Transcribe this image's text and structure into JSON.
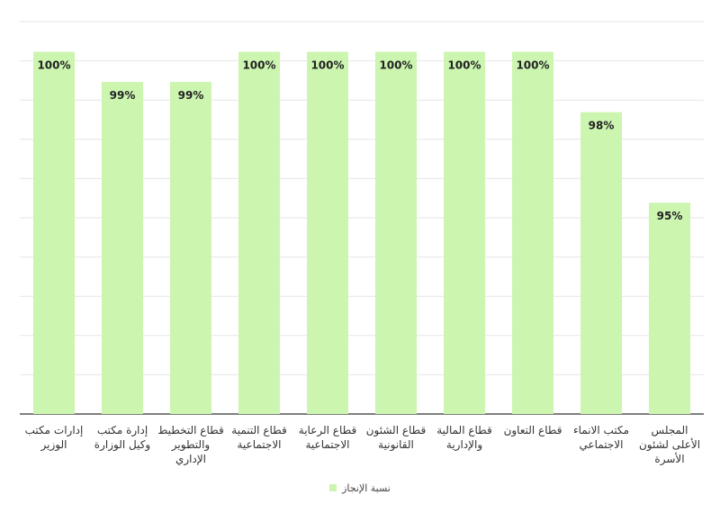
{
  "chart_data": {
    "type": "bar",
    "categories": [
      "إدارات مكتب الوزير",
      "إدارة مكتب وكيل الوزارة",
      "قطاع التخطيط والتطوير الإداري",
      "قطاع التنمية الاجتماعية",
      "قطاع الرعاية الاجتماعية",
      "قطاع الشئون القانونية",
      "قطاع المالية والإدارية",
      "قطاع التعاون",
      "مكتب الانماء الاجتماعي",
      "المجلس الأعلى لشئون الأسرة"
    ],
    "series": [
      {
        "name": "نسبة الإنجاز",
        "values": [
          100,
          99,
          99,
          100,
          100,
          100,
          100,
          100,
          98,
          95
        ]
      }
    ],
    "data_labels": [
      "100%",
      "99%",
      "99%",
      "100%",
      "100%",
      "100%",
      "100%",
      "100%",
      "98%",
      "95%"
    ],
    "ylim": [
      88,
      101
    ],
    "grid": true,
    "legend_position": "bottom",
    "bar_color": "#ccf5b0"
  }
}
